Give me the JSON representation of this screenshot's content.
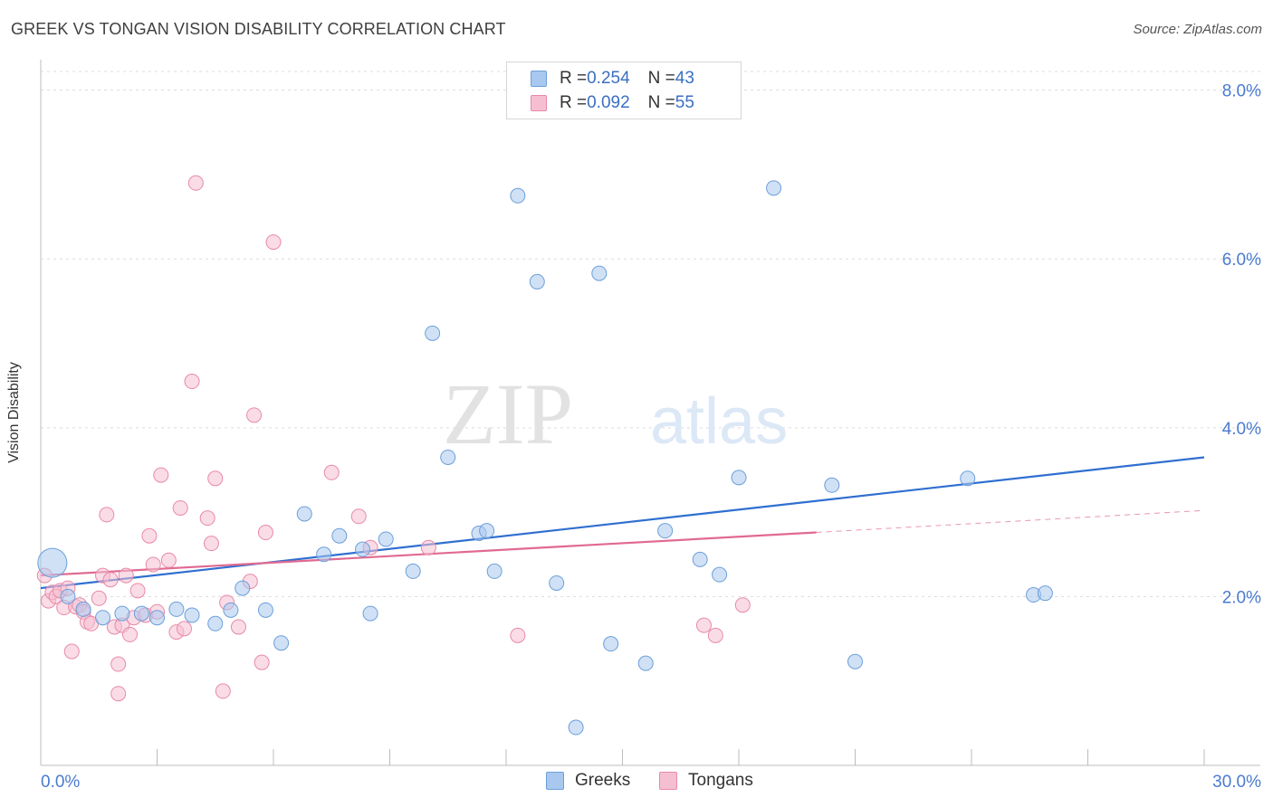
{
  "title": "GREEK VS TONGAN VISION DISABILITY CORRELATION CHART",
  "source": "Source: ZipAtlas.com",
  "watermark": {
    "zip": "ZIP",
    "atlas": "atlas"
  },
  "legend": {
    "rows": [
      {
        "r_label": "R = ",
        "r_value": "0.254",
        "n_label": "N = ",
        "n_value": "43",
        "color": "#a9c8ef",
        "border": "#6c9fd9"
      },
      {
        "r_label": "R = ",
        "r_value": "0.092",
        "n_label": "N = ",
        "n_value": "55",
        "color": "#f6bfd1",
        "border": "#e88aa8"
      }
    ]
  },
  "bottom_legend": {
    "greeks": "Greeks",
    "tongans": "Tongans"
  },
  "chart_data": {
    "type": "scatter",
    "title": "GREEK VS TONGAN VISION DISABILITY CORRELATION CHART",
    "xlabel": "",
    "ylabel": "Vision Disability",
    "xlim": [
      0,
      30
    ],
    "ylim": [
      0,
      8.2
    ],
    "x_tick_labels": [
      "0.0%",
      "30.0%"
    ],
    "y_ticks": [
      2,
      4,
      6,
      8
    ],
    "y_tick_labels": [
      "2.0%",
      "4.0%",
      "6.0%",
      "8.0%"
    ],
    "grid": true,
    "legend_position": "top-center",
    "series": [
      {
        "name": "Greeks",
        "color": "#6c9fd9",
        "fill": "#a9c8ef",
        "trend": {
          "x": [
            0,
            30
          ],
          "y": [
            2.1,
            3.65
          ],
          "color": "#2f6fd0"
        },
        "points": [
          [
            0.3,
            2.4,
            "large"
          ],
          [
            0.7,
            2.0
          ],
          [
            1.1,
            1.85
          ],
          [
            1.6,
            1.75
          ],
          [
            2.1,
            1.8
          ],
          [
            2.6,
            1.8
          ],
          [
            3.0,
            1.75
          ],
          [
            3.5,
            1.85
          ],
          [
            3.9,
            1.78
          ],
          [
            4.5,
            1.68
          ],
          [
            4.9,
            1.84
          ],
          [
            5.2,
            2.1
          ],
          [
            5.8,
            1.84
          ],
          [
            6.2,
            1.45
          ],
          [
            6.8,
            2.98
          ],
          [
            7.3,
            2.5
          ],
          [
            7.7,
            2.72
          ],
          [
            8.3,
            2.56
          ],
          [
            8.5,
            1.8
          ],
          [
            8.9,
            2.68
          ],
          [
            9.6,
            2.3
          ],
          [
            10.1,
            5.12
          ],
          [
            10.5,
            3.65
          ],
          [
            11.3,
            2.75
          ],
          [
            11.5,
            2.78
          ],
          [
            11.7,
            2.3
          ],
          [
            12.3,
            6.75
          ],
          [
            12.8,
            5.73
          ],
          [
            13.3,
            2.16
          ],
          [
            13.8,
            0.45
          ],
          [
            14.4,
            5.83
          ],
          [
            14.7,
            1.44
          ],
          [
            15.6,
            1.21
          ],
          [
            16.1,
            2.78
          ],
          [
            17.0,
            2.44
          ],
          [
            17.5,
            2.26
          ],
          [
            18.0,
            3.41
          ],
          [
            18.9,
            6.84
          ],
          [
            20.4,
            3.32
          ],
          [
            21.0,
            1.23
          ],
          [
            23.9,
            3.4
          ],
          [
            25.6,
            2.02
          ],
          [
            25.9,
            2.04
          ]
        ]
      },
      {
        "name": "Tongans",
        "color": "#e88aa8",
        "fill": "#f6bfd1",
        "trend": {
          "x": [
            0,
            20
          ],
          "y": [
            2.25,
            2.76
          ],
          "color": "#e06a92",
          "extended_to": [
            30,
            3.02
          ]
        },
        "points": [
          [
            0.1,
            2.25
          ],
          [
            0.2,
            1.95
          ],
          [
            0.3,
            2.05
          ],
          [
            0.4,
            2.0
          ],
          [
            0.5,
            2.07
          ],
          [
            0.6,
            1.87
          ],
          [
            0.7,
            2.1
          ],
          [
            0.8,
            1.35
          ],
          [
            0.9,
            1.88
          ],
          [
            1.0,
            1.9
          ],
          [
            1.1,
            1.82
          ],
          [
            1.2,
            1.7
          ],
          [
            1.3,
            1.68
          ],
          [
            1.5,
            1.98
          ],
          [
            1.6,
            2.25
          ],
          [
            1.7,
            2.97
          ],
          [
            1.8,
            2.2
          ],
          [
            1.9,
            1.64
          ],
          [
            2.0,
            1.2
          ],
          [
            2.0,
            0.85
          ],
          [
            2.1,
            1.66
          ],
          [
            2.2,
            2.25
          ],
          [
            2.3,
            1.55
          ],
          [
            2.4,
            1.75
          ],
          [
            2.5,
            2.07
          ],
          [
            2.7,
            1.78
          ],
          [
            2.8,
            2.72
          ],
          [
            2.9,
            2.38
          ],
          [
            3.0,
            1.82
          ],
          [
            3.1,
            3.44
          ],
          [
            3.3,
            2.43
          ],
          [
            3.5,
            1.58
          ],
          [
            3.6,
            3.05
          ],
          [
            3.7,
            1.62
          ],
          [
            3.9,
            4.55
          ],
          [
            4.0,
            6.9
          ],
          [
            4.3,
            2.93
          ],
          [
            4.4,
            2.63
          ],
          [
            4.5,
            3.4
          ],
          [
            4.7,
            0.88
          ],
          [
            4.8,
            1.93
          ],
          [
            5.1,
            1.64
          ],
          [
            5.4,
            2.18
          ],
          [
            5.5,
            4.15
          ],
          [
            5.7,
            1.22
          ],
          [
            5.8,
            2.76
          ],
          [
            6.0,
            6.2
          ],
          [
            7.5,
            3.47
          ],
          [
            8.2,
            2.95
          ],
          [
            8.5,
            2.58
          ],
          [
            10.0,
            2.58
          ],
          [
            12.3,
            1.54
          ],
          [
            17.1,
            1.66
          ],
          [
            17.4,
            1.54
          ],
          [
            18.1,
            1.9
          ]
        ]
      }
    ]
  }
}
